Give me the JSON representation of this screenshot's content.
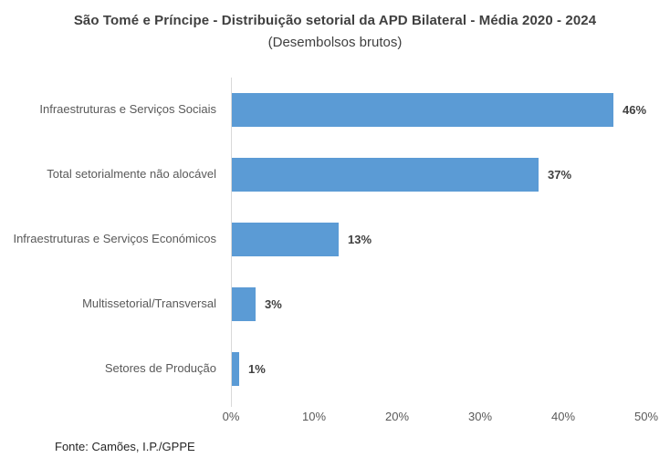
{
  "header": {
    "title": "São Tomé e Príncipe - Distribuição setorial da APD Bilateral - Média 2020 - 2024",
    "subtitle": "(Desembolsos brutos)"
  },
  "footer": {
    "source": "Fonte: Camões, I.P./GPPE"
  },
  "colors": {
    "bar": "#5B9BD5",
    "title_text": "#404040",
    "category_text": "#595959",
    "value_text": "#404040",
    "axis_line": "#D9D9D9"
  },
  "chart_data": {
    "type": "bar",
    "orientation": "horizontal",
    "title": "São Tomé e Príncipe - Distribuição setorial da APD Bilateral - Média 2020 - 2024",
    "subtitle": "(Desembolsos brutos)",
    "categories": [
      "Infraestruturas e Serviços Sociais",
      "Total setorialmente não alocável",
      "Infraestruturas e Serviços Económicos",
      "Multissetorial/Transversal",
      "Setores de Produção"
    ],
    "values": [
      46,
      37,
      13,
      3,
      1
    ],
    "value_labels": [
      "46%",
      "37%",
      "13%",
      "3%",
      "1%"
    ],
    "xlabel": "",
    "ylabel": "",
    "xlim": [
      0,
      50
    ],
    "x_tick_labels": [
      "0%",
      "10%",
      "20%",
      "30%",
      "40%",
      "50%"
    ],
    "x_tick_values": [
      0,
      10,
      20,
      30,
      40,
      50
    ],
    "grid": false,
    "legend": false,
    "data_labels": "outside-end",
    "bar_color": "#5B9BD5"
  }
}
